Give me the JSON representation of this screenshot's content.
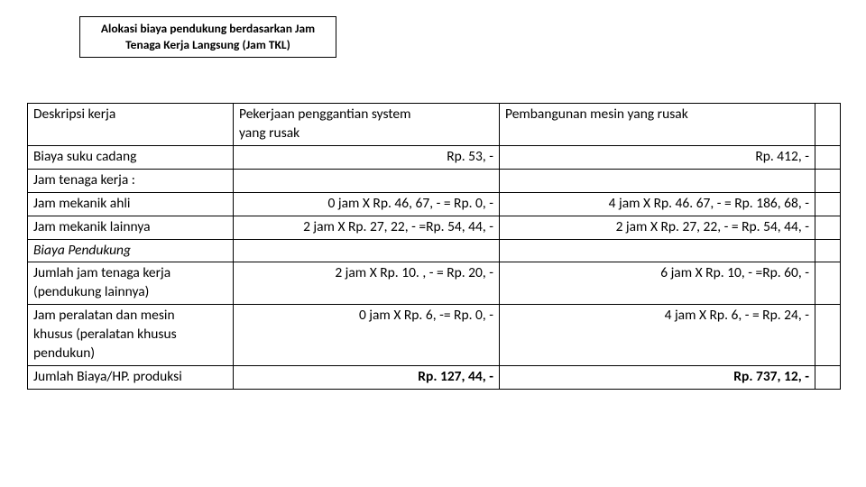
{
  "title": {
    "line1": "Alokasi biaya pendukung berdasarkan Jam",
    "line2": "Tenaga Kerja Langsung (Jam TKL)"
  },
  "table": {
    "columns": {
      "desc": "Deskripsi kerja",
      "col1_line1": "Pekerjaan penggantian system",
      "col1_line2": "yang rusak",
      "col2": "Pembangunan mesin yang rusak"
    },
    "rows": [
      {
        "desc": "Biaya suku cadang",
        "v1": "Rp. 53, -",
        "v2": "Rp. 412, -"
      },
      {
        "desc": "Jam tenaga kerja :",
        "v1": "",
        "v2": ""
      },
      {
        "desc": "Jam mekanik ahli",
        "v1": "0 jam X Rp. 46, 67, - = Rp. 0, -",
        "v2": "4 jam X Rp. 46. 67, - = Rp. 186, 68, -"
      },
      {
        "desc": "Jam mekanik lainnya",
        "v1": "2 jam X Rp. 27, 22, - =Rp. 54, 44, -",
        "v2": "2 jam X Rp. 27, 22, - = Rp. 54, 44, -"
      },
      {
        "desc_italic": "Biaya Pendukung",
        "v1": "",
        "v2": ""
      },
      {
        "desc_line1": "Jumlah jam tenaga kerja",
        "desc_line2": "(pendukung lainnya)",
        "v1": "2 jam X Rp. 10. , - = Rp. 20, -",
        "v2": "6 jam X Rp. 10, - =Rp. 60, -"
      },
      {
        "desc_line1": "Jam peralatan dan mesin",
        "desc_line2": "khusus (peralatan khusus",
        "desc_line3": "pendukun)",
        "v1": "0 jam X Rp. 6, -= Rp. 0, -",
        "v2": "4 jam X Rp. 6, - = Rp. 24, -"
      },
      {
        "desc": "Jumlah Biaya/HP. produksi",
        "v1_bold": "Rp. 127, 44, -",
        "v2_bold": "Rp. 737, 12, -"
      }
    ]
  }
}
